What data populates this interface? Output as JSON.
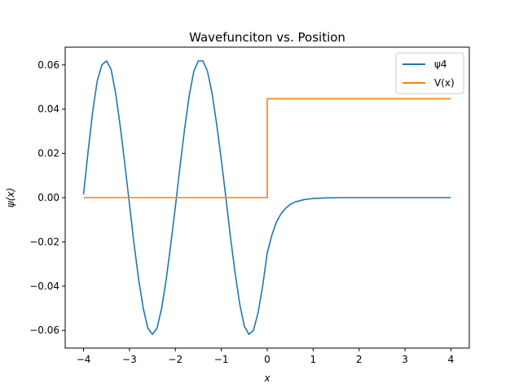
{
  "chart_data": {
    "type": "line",
    "title": "Wavefunciton vs. Position",
    "xlabel": "x",
    "ylabel": "ψ(x)",
    "xlim": [
      -4.4,
      4.4
    ],
    "ylim": [
      -0.068,
      0.068
    ],
    "x_ticks": [
      -4,
      -3,
      -2,
      -1,
      0,
      1,
      2,
      3,
      4
    ],
    "x_tick_labels": [
      "−4",
      "−3",
      "−2",
      "−1",
      "0",
      "1",
      "2",
      "3",
      "4"
    ],
    "y_ticks": [
      -0.06,
      -0.04,
      -0.02,
      0.0,
      0.02,
      0.04,
      0.06
    ],
    "y_tick_labels": [
      "−0.06",
      "−0.04",
      "−0.02",
      "0.00",
      "0.02",
      "0.04",
      "0.06"
    ],
    "grid": false,
    "legend_position": "top-right",
    "series": [
      {
        "name": "ψ4",
        "color": "#1f77b4",
        "points": [
          [
            -4.0,
            0.0015
          ],
          [
            -3.9,
            0.021
          ],
          [
            -3.8,
            0.039
          ],
          [
            -3.7,
            0.053
          ],
          [
            -3.6,
            0.06
          ],
          [
            -3.5,
            0.0618
          ],
          [
            -3.4,
            0.058
          ],
          [
            -3.3,
            0.047
          ],
          [
            -3.2,
            0.032
          ],
          [
            -3.1,
            0.015
          ],
          [
            -3.0,
            -0.003
          ],
          [
            -2.9,
            -0.021
          ],
          [
            -2.8,
            -0.037
          ],
          [
            -2.7,
            -0.05
          ],
          [
            -2.6,
            -0.059
          ],
          [
            -2.5,
            -0.0618
          ],
          [
            -2.4,
            -0.059
          ],
          [
            -2.3,
            -0.05
          ],
          [
            -2.2,
            -0.037
          ],
          [
            -2.1,
            -0.021
          ],
          [
            -2.0,
            -0.004
          ],
          [
            -1.9,
            0.014
          ],
          [
            -1.8,
            0.031
          ],
          [
            -1.7,
            0.046
          ],
          [
            -1.6,
            0.057
          ],
          [
            -1.5,
            0.0618
          ],
          [
            -1.4,
            0.0618
          ],
          [
            -1.3,
            0.057
          ],
          [
            -1.2,
            0.047
          ],
          [
            -1.1,
            0.033
          ],
          [
            -1.0,
            0.017
          ],
          [
            -0.9,
            0.0
          ],
          [
            -0.8,
            -0.018
          ],
          [
            -0.7,
            -0.034
          ],
          [
            -0.6,
            -0.048
          ],
          [
            -0.5,
            -0.058
          ],
          [
            -0.4,
            -0.0618
          ],
          [
            -0.3,
            -0.06
          ],
          [
            -0.2,
            -0.052
          ],
          [
            -0.1,
            -0.04
          ],
          [
            0.0,
            -0.025
          ],
          [
            0.1,
            -0.017
          ],
          [
            0.2,
            -0.011
          ],
          [
            0.3,
            -0.0073
          ],
          [
            0.4,
            -0.0048
          ],
          [
            0.5,
            -0.0031
          ],
          [
            0.6,
            -0.002
          ],
          [
            0.8,
            -0.0009
          ],
          [
            1.0,
            -0.0004
          ],
          [
            1.3,
            -0.0001
          ],
          [
            1.6,
            0.0
          ],
          [
            2.0,
            0.0
          ],
          [
            3.0,
            0.0
          ],
          [
            4.0,
            0.0
          ]
        ]
      },
      {
        "name": "V(x)",
        "color": "#ff7f0e",
        "points": [
          [
            -4.0,
            0.0
          ],
          [
            0.0,
            0.0
          ],
          [
            0.0,
            0.0447
          ],
          [
            4.0,
            0.0447
          ]
        ]
      }
    ]
  }
}
